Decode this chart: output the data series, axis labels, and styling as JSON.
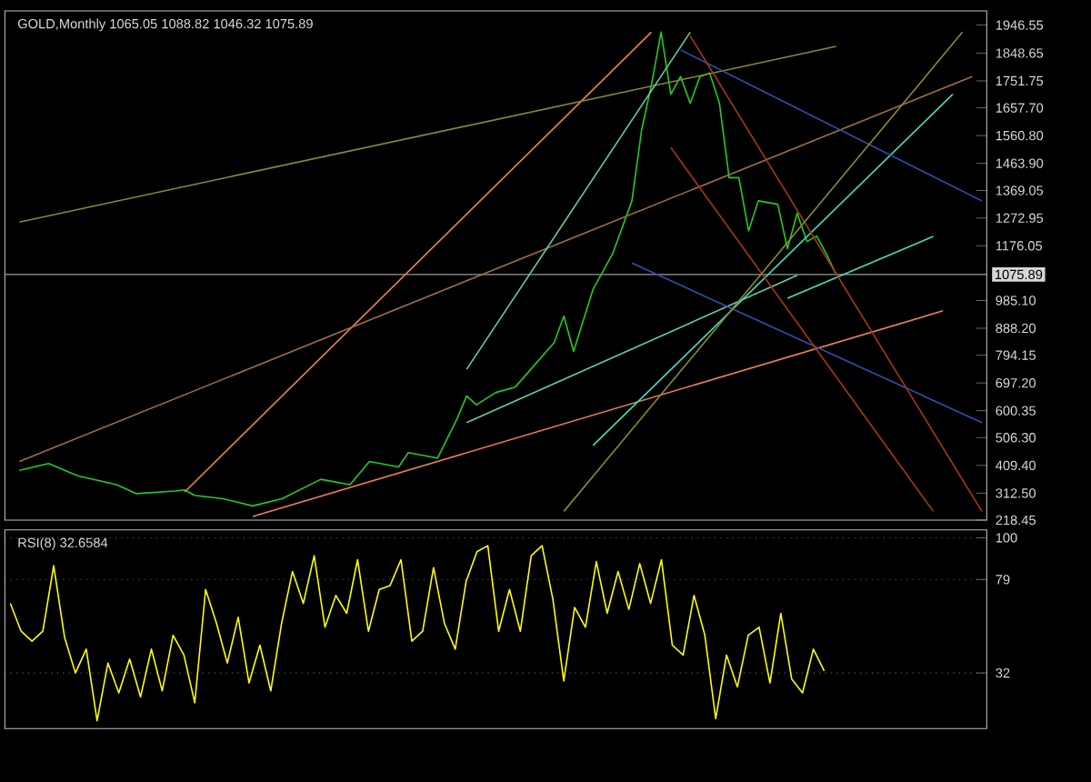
{
  "chart_data": [
    {
      "type": "line",
      "title": "GOLD,Monthly  1065.05 1088.82 1046.32 1075.89",
      "ylim": [
        218.45,
        1996
      ],
      "tick_labels": "y",
      "grid": false,
      "categories": [
        null,
        null,
        null,
        null,
        null,
        null,
        null,
        null,
        null,
        null,
        null,
        null,
        null,
        null,
        null,
        null,
        null,
        null,
        null,
        null,
        null,
        null,
        null,
        null,
        null,
        null,
        null,
        null,
        null,
        null,
        null,
        null,
        null,
        null,
        null,
        null,
        null,
        null,
        null,
        null,
        null,
        null,
        null,
        null,
        null,
        null,
        null,
        null,
        null,
        null,
        null,
        null,
        null,
        null,
        null,
        null,
        null,
        null,
        null,
        null,
        null,
        null,
        null,
        null,
        null,
        null,
        null,
        null,
        null,
        null,
        null,
        null,
        null,
        null,
        null,
        null,
        null,
        null,
        null,
        null,
        null,
        null,
        null,
        null,
        null,
        null,
        null,
        null,
        null,
        null,
        null,
        null,
        null,
        null,
        null,
        null,
        null,
        null,
        null,
        null,
        null
      ],
      "yticks": [
        {
          "value": 218.45,
          "label": "218.45"
        },
        {
          "value": 312.5,
          "label": "312.50"
        },
        {
          "value": 409.4,
          "label": "409.40"
        },
        {
          "value": 506.3,
          "label": "506.30"
        },
        {
          "value": 600.35,
          "label": "600.35"
        },
        {
          "value": 697.2,
          "label": "697.20"
        },
        {
          "value": 794.15,
          "label": "794.15"
        },
        {
          "value": 888.2,
          "label": "888.20"
        },
        {
          "value": 985.1,
          "label": "985.10"
        },
        {
          "value": 1176.05,
          "label": "1176.05"
        },
        {
          "value": 1272.95,
          "label": "1272.95"
        },
        {
          "value": 1369.05,
          "label": "1369.05"
        },
        {
          "value": 1463.9,
          "label": "1463.90"
        },
        {
          "value": 1560.8,
          "label": "1560.80"
        },
        {
          "value": 1657.7,
          "label": "1657.70"
        },
        {
          "value": 1751.75,
          "label": "1751.75"
        },
        {
          "value": 1848.65,
          "label": "1848.65"
        },
        {
          "value": 1946.55,
          "label": "1946.55"
        }
      ],
      "ref_lines": [
        {
          "axis": "y",
          "value": 1075.89,
          "label": "1075.89",
          "color": "#9a9a9a"
        }
      ],
      "series": [
        {
          "color": "#22cc22",
          "values": [
            null,
            392,
            null,
            null,
            416,
            null,
            null,
            373,
            null,
            null,
            null,
            342,
            null,
            311,
            null,
            null,
            null,
            320,
            324,
            305,
            null,
            null,
            293,
            null,
            null,
            268,
            null,
            null,
            293,
            null,
            null,
            null,
            361,
            null,
            null,
            342,
            null,
            423,
            null,
            null,
            404,
            454,
            null,
            null,
            435,
            null,
            571,
            652,
            621,
            null,
            664,
            null,
            683,
            null,
            null,
            null,
            838,
            931,
            807,
            null,
            1024,
            null,
            1147,
            null,
            1333,
            1581,
            1736,
            1922,
            1705,
            1767,
            1674,
            1767,
            1779,
            1674,
            1414,
            1414,
            1228,
            1333,
            null,
            1321,
            1166,
            1290,
            1191,
            1210,
            1148,
            1076,
            null,
            null,
            null,
            null,
            null,
            null,
            null,
            null,
            null,
            null,
            null,
            null,
            null,
            null,
            null
          ]
        },
        {
          "color": "#f08050",
          "values": [
            null,
            null,
            null,
            null,
            null,
            null,
            null,
            null,
            null,
            null,
            null,
            null,
            null,
            null,
            null,
            null,
            null,
            null,
            317,
            null,
            null,
            null,
            null,
            null,
            null,
            null,
            null,
            null,
            null,
            null,
            null,
            null,
            null,
            null,
            null,
            null,
            null,
            null,
            null,
            null,
            null,
            null,
            null,
            null,
            null,
            null,
            null,
            null,
            null,
            null,
            null,
            null,
            null,
            null,
            null,
            null,
            null,
            null,
            null,
            null,
            null,
            null,
            null,
            null,
            null,
            null,
            1922,
            null,
            null,
            null,
            null,
            null,
            null,
            null,
            null,
            null,
            null,
            null,
            null,
            null,
            null,
            null,
            null,
            null,
            null,
            null,
            null,
            null,
            null,
            null,
            null,
            null,
            null,
            null,
            null,
            null,
            null,
            null,
            null,
            null,
            null
          ]
        },
        {
          "color": "#f08050",
          "values": [
            null,
            null,
            null,
            null,
            null,
            null,
            null,
            null,
            null,
            null,
            null,
            null,
            null,
            null,
            null,
            null,
            null,
            null,
            null,
            null,
            null,
            null,
            null,
            null,
            null,
            231,
            null,
            null,
            null,
            null,
            null,
            null,
            null,
            null,
            null,
            null,
            null,
            null,
            null,
            null,
            null,
            null,
            null,
            null,
            null,
            null,
            null,
            null,
            null,
            null,
            null,
            null,
            null,
            null,
            null,
            null,
            null,
            null,
            null,
            null,
            null,
            null,
            null,
            null,
            null,
            null,
            null,
            null,
            null,
            null,
            null,
            null,
            null,
            null,
            null,
            null,
            null,
            null,
            null,
            null,
            null,
            null,
            null,
            null,
            null,
            null,
            null,
            null,
            null,
            null,
            null,
            null,
            null,
            null,
            null,
            null,
            949,
            null,
            null,
            null,
            null
          ]
        },
        {
          "color": "#8a8a30",
          "values": [
            null,
            1259,
            null,
            null,
            null,
            null,
            null,
            null,
            null,
            null,
            null,
            null,
            null,
            null,
            null,
            null,
            null,
            null,
            null,
            null,
            null,
            null,
            null,
            null,
            null,
            null,
            null,
            null,
            null,
            null,
            null,
            null,
            null,
            null,
            null,
            null,
            null,
            null,
            null,
            null,
            null,
            null,
            null,
            null,
            null,
            null,
            null,
            null,
            null,
            null,
            null,
            null,
            null,
            null,
            null,
            null,
            null,
            null,
            null,
            null,
            null,
            null,
            null,
            null,
            null,
            null,
            null,
            null,
            null,
            null,
            null,
            null,
            null,
            null,
            null,
            null,
            null,
            null,
            null,
            null,
            null,
            null,
            null,
            null,
            null,
            1872,
            null,
            null,
            null,
            null,
            null,
            null,
            null,
            null,
            null,
            null,
            null,
            null,
            null,
            null,
            null
          ]
        },
        {
          "color": "#a07040",
          "values": [
            null,
            423,
            null,
            null,
            null,
            null,
            null,
            null,
            null,
            null,
            null,
            null,
            null,
            null,
            null,
            null,
            null,
            null,
            null,
            null,
            null,
            null,
            null,
            null,
            null,
            null,
            null,
            null,
            null,
            null,
            null,
            null,
            null,
            null,
            null,
            null,
            null,
            null,
            null,
            null,
            null,
            null,
            null,
            null,
            null,
            null,
            null,
            null,
            null,
            null,
            null,
            null,
            null,
            null,
            null,
            null,
            null,
            null,
            null,
            null,
            null,
            null,
            null,
            null,
            null,
            null,
            null,
            null,
            null,
            null,
            null,
            null,
            null,
            null,
            null,
            null,
            null,
            null,
            null,
            null,
            null,
            null,
            null,
            null,
            null,
            null,
            null,
            null,
            null,
            null,
            null,
            null,
            null,
            null,
            null,
            null,
            null,
            null,
            null,
            1767,
            null
          ]
        },
        {
          "color": "#60d0a0",
          "values": [
            null,
            null,
            null,
            null,
            null,
            null,
            null,
            null,
            null,
            null,
            null,
            null,
            null,
            null,
            null,
            null,
            null,
            null,
            null,
            null,
            null,
            null,
            null,
            null,
            null,
            null,
            null,
            null,
            null,
            null,
            null,
            null,
            null,
            null,
            null,
            null,
            null,
            null,
            null,
            null,
            null,
            null,
            null,
            null,
            null,
            null,
            null,
            745,
            null,
            null,
            null,
            null,
            null,
            null,
            null,
            null,
            null,
            null,
            null,
            null,
            null,
            null,
            null,
            null,
            null,
            null,
            null,
            null,
            null,
            null,
            1922,
            null,
            null,
            null,
            null,
            null,
            null,
            null,
            null,
            null,
            null,
            null,
            null,
            null,
            null,
            null,
            null,
            null,
            null,
            null,
            null,
            null,
            null,
            null,
            null,
            null,
            null,
            null,
            null,
            null,
            null
          ]
        },
        {
          "color": "#60d0a0",
          "values": [
            null,
            null,
            null,
            null,
            null,
            null,
            null,
            null,
            null,
            null,
            null,
            null,
            null,
            null,
            null,
            null,
            null,
            null,
            null,
            null,
            null,
            null,
            null,
            null,
            null,
            null,
            null,
            null,
            null,
            null,
            null,
            null,
            null,
            null,
            null,
            null,
            null,
            null,
            null,
            null,
            null,
            null,
            null,
            null,
            null,
            null,
            null,
            559,
            null,
            null,
            null,
            null,
            null,
            null,
            null,
            null,
            null,
            null,
            null,
            null,
            null,
            null,
            null,
            null,
            null,
            null,
            null,
            null,
            null,
            null,
            null,
            null,
            null,
            null,
            null,
            null,
            null,
            null,
            null,
            null,
            null,
            1073,
            null,
            null,
            null,
            null,
            null,
            null,
            null,
            null,
            null,
            null,
            null,
            null,
            null,
            null,
            null,
            null,
            null,
            null,
            null
          ]
        },
        {
          "color": "#40e0c0",
          "values": [
            null,
            null,
            null,
            null,
            null,
            null,
            null,
            null,
            null,
            null,
            null,
            null,
            null,
            null,
            null,
            null,
            null,
            null,
            null,
            null,
            null,
            null,
            null,
            null,
            null,
            null,
            null,
            null,
            null,
            null,
            null,
            null,
            null,
            null,
            null,
            null,
            null,
            null,
            null,
            null,
            null,
            null,
            null,
            null,
            null,
            null,
            null,
            null,
            null,
            null,
            null,
            null,
            null,
            null,
            null,
            null,
            null,
            null,
            null,
            null,
            479,
            null,
            null,
            null,
            null,
            null,
            null,
            null,
            null,
            null,
            null,
            null,
            null,
            null,
            null,
            null,
            null,
            null,
            null,
            null,
            null,
            null,
            null,
            null,
            null,
            null,
            null,
            null,
            null,
            null,
            null,
            null,
            null,
            null,
            null,
            null,
            null,
            1705,
            null,
            null,
            null
          ]
        },
        {
          "color": "#40e0c0",
          "values": [
            null,
            null,
            null,
            null,
            null,
            null,
            null,
            null,
            null,
            null,
            null,
            null,
            null,
            null,
            null,
            null,
            null,
            null,
            null,
            null,
            null,
            null,
            null,
            null,
            null,
            null,
            null,
            null,
            null,
            null,
            null,
            null,
            null,
            null,
            null,
            null,
            null,
            null,
            null,
            null,
            null,
            null,
            null,
            null,
            null,
            null,
            null,
            null,
            null,
            null,
            null,
            null,
            null,
            null,
            null,
            null,
            null,
            null,
            null,
            null,
            null,
            null,
            null,
            null,
            null,
            null,
            null,
            null,
            null,
            null,
            null,
            null,
            null,
            null,
            null,
            null,
            null,
            null,
            null,
            null,
            993,
            null,
            null,
            null,
            null,
            null,
            null,
            null,
            null,
            null,
            null,
            null,
            null,
            null,
            null,
            1209,
            null,
            null,
            null,
            null,
            null
          ]
        },
        {
          "color": "#3050b0",
          "values": [
            null,
            null,
            null,
            null,
            null,
            null,
            null,
            null,
            null,
            null,
            null,
            null,
            null,
            null,
            null,
            null,
            null,
            null,
            null,
            null,
            null,
            null,
            null,
            null,
            null,
            null,
            null,
            null,
            null,
            null,
            null,
            null,
            null,
            null,
            null,
            null,
            null,
            null,
            null,
            null,
            null,
            null,
            null,
            null,
            null,
            null,
            null,
            null,
            null,
            null,
            null,
            null,
            null,
            null,
            null,
            null,
            null,
            null,
            null,
            null,
            null,
            null,
            null,
            null,
            null,
            null,
            null,
            null,
            null,
            1860,
            null,
            null,
            null,
            null,
            null,
            null,
            null,
            null,
            null,
            null,
            null,
            null,
            null,
            null,
            null,
            null,
            null,
            null,
            null,
            null,
            null,
            null,
            null,
            null,
            null,
            null,
            null,
            null,
            null,
            null,
            1333
          ]
        },
        {
          "color": "#3050b0",
          "values": [
            null,
            null,
            null,
            null,
            null,
            null,
            null,
            null,
            null,
            null,
            null,
            null,
            null,
            null,
            null,
            null,
            null,
            null,
            null,
            null,
            null,
            null,
            null,
            null,
            null,
            null,
            null,
            null,
            null,
            null,
            null,
            null,
            null,
            null,
            null,
            null,
            null,
            null,
            null,
            null,
            null,
            null,
            null,
            null,
            null,
            null,
            null,
            null,
            null,
            null,
            null,
            null,
            null,
            null,
            null,
            null,
            null,
            null,
            null,
            null,
            null,
            null,
            null,
            null,
            1116,
            null,
            null,
            null,
            null,
            null,
            null,
            null,
            null,
            null,
            null,
            null,
            null,
            null,
            null,
            null,
            null,
            null,
            null,
            null,
            null,
            null,
            null,
            null,
            null,
            null,
            null,
            null,
            null,
            null,
            null,
            null,
            null,
            null,
            null,
            null,
            559
          ]
        },
        {
          "color": "#a83818",
          "values": [
            null,
            null,
            null,
            null,
            null,
            null,
            null,
            null,
            null,
            null,
            null,
            null,
            null,
            null,
            null,
            null,
            null,
            null,
            null,
            null,
            null,
            null,
            null,
            null,
            null,
            null,
            null,
            null,
            null,
            null,
            null,
            null,
            null,
            null,
            null,
            null,
            null,
            null,
            null,
            null,
            null,
            null,
            null,
            null,
            null,
            null,
            null,
            null,
            null,
            null,
            null,
            null,
            null,
            null,
            null,
            null,
            null,
            null,
            null,
            null,
            null,
            null,
            null,
            null,
            null,
            null,
            null,
            null,
            null,
            null,
            1909,
            null,
            null,
            null,
            null,
            null,
            null,
            null,
            null,
            null,
            null,
            null,
            null,
            null,
            null,
            null,
            null,
            null,
            null,
            null,
            null,
            null,
            null,
            null,
            null,
            null,
            null,
            null,
            null,
            null,
            249
          ]
        },
        {
          "color": "#a83818",
          "values": [
            null,
            null,
            null,
            null,
            null,
            null,
            null,
            null,
            null,
            null,
            null,
            null,
            null,
            null,
            null,
            null,
            null,
            null,
            null,
            null,
            null,
            null,
            null,
            null,
            null,
            null,
            null,
            null,
            null,
            null,
            null,
            null,
            null,
            null,
            null,
            null,
            null,
            null,
            null,
            null,
            null,
            null,
            null,
            null,
            null,
            null,
            null,
            null,
            null,
            null,
            null,
            null,
            null,
            null,
            null,
            null,
            null,
            null,
            null,
            null,
            null,
            null,
            null,
            null,
            null,
            null,
            null,
            null,
            1519,
            null,
            null,
            null,
            null,
            null,
            null,
            null,
            null,
            null,
            null,
            null,
            null,
            null,
            null,
            null,
            null,
            null,
            null,
            null,
            null,
            null,
            null,
            null,
            null,
            null,
            null,
            249,
            null,
            null,
            null,
            null,
            null
          ]
        },
        {
          "color": "#8a8a30",
          "values": [
            null,
            null,
            null,
            null,
            null,
            null,
            null,
            null,
            null,
            null,
            null,
            null,
            null,
            null,
            null,
            null,
            null,
            null,
            null,
            null,
            null,
            null,
            null,
            null,
            null,
            null,
            null,
            null,
            null,
            null,
            null,
            null,
            null,
            null,
            null,
            null,
            null,
            null,
            null,
            null,
            null,
            null,
            null,
            null,
            null,
            null,
            null,
            null,
            null,
            null,
            null,
            null,
            null,
            null,
            null,
            null,
            null,
            249,
            null,
            null,
            null,
            null,
            null,
            null,
            null,
            null,
            null,
            null,
            null,
            null,
            null,
            null,
            null,
            null,
            null,
            null,
            null,
            null,
            null,
            null,
            null,
            null,
            null,
            null,
            null,
            null,
            null,
            null,
            null,
            null,
            null,
            null,
            null,
            null,
            null,
            null,
            null,
            null,
            1922,
            null,
            null
          ]
        }
      ]
    },
    {
      "type": "line",
      "title": "RSI(8) 32.6584",
      "ylim": [
        4,
        104
      ],
      "yticks": [
        32,
        79,
        100
      ],
      "tick_labels": "y",
      "grid": "y",
      "categories": [
        null,
        null,
        null,
        null,
        null,
        null,
        null,
        null,
        null,
        null,
        null,
        null,
        null,
        null,
        null,
        null,
        null,
        null,
        null,
        null,
        null,
        null,
        null,
        null,
        null,
        null,
        null,
        null,
        null,
        null,
        null,
        null,
        null,
        null,
        null,
        null,
        null,
        null,
        null,
        null,
        null,
        null,
        null,
        null,
        null,
        null,
        null,
        null,
        null,
        null,
        null,
        null,
        null,
        null,
        null,
        null,
        null,
        null,
        null,
        null,
        null,
        null,
        null,
        null,
        null,
        null,
        null,
        null,
        null,
        null,
        null,
        null,
        null,
        null,
        null,
        null
      ],
      "series": [
        {
          "color": "#ffff00",
          "values": [
            67,
            53,
            48,
            53,
            86,
            50,
            32,
            44,
            8,
            37,
            22,
            39,
            20,
            44,
            23,
            51,
            41,
            17,
            74,
            57,
            37,
            60,
            27,
            46,
            23,
            57,
            83,
            67,
            91,
            55,
            71,
            62,
            89,
            53,
            74,
            76,
            89,
            48,
            53,
            85,
            57,
            44,
            78,
            93,
            96,
            53,
            74,
            53,
            91,
            96,
            69,
            28,
            65,
            55,
            88,
            62,
            83,
            64,
            87,
            67,
            89,
            46,
            41,
            71,
            51,
            9,
            41,
            25,
            51,
            55,
            27,
            62,
            29,
            22,
            44,
            33
          ]
        }
      ]
    }
  ]
}
